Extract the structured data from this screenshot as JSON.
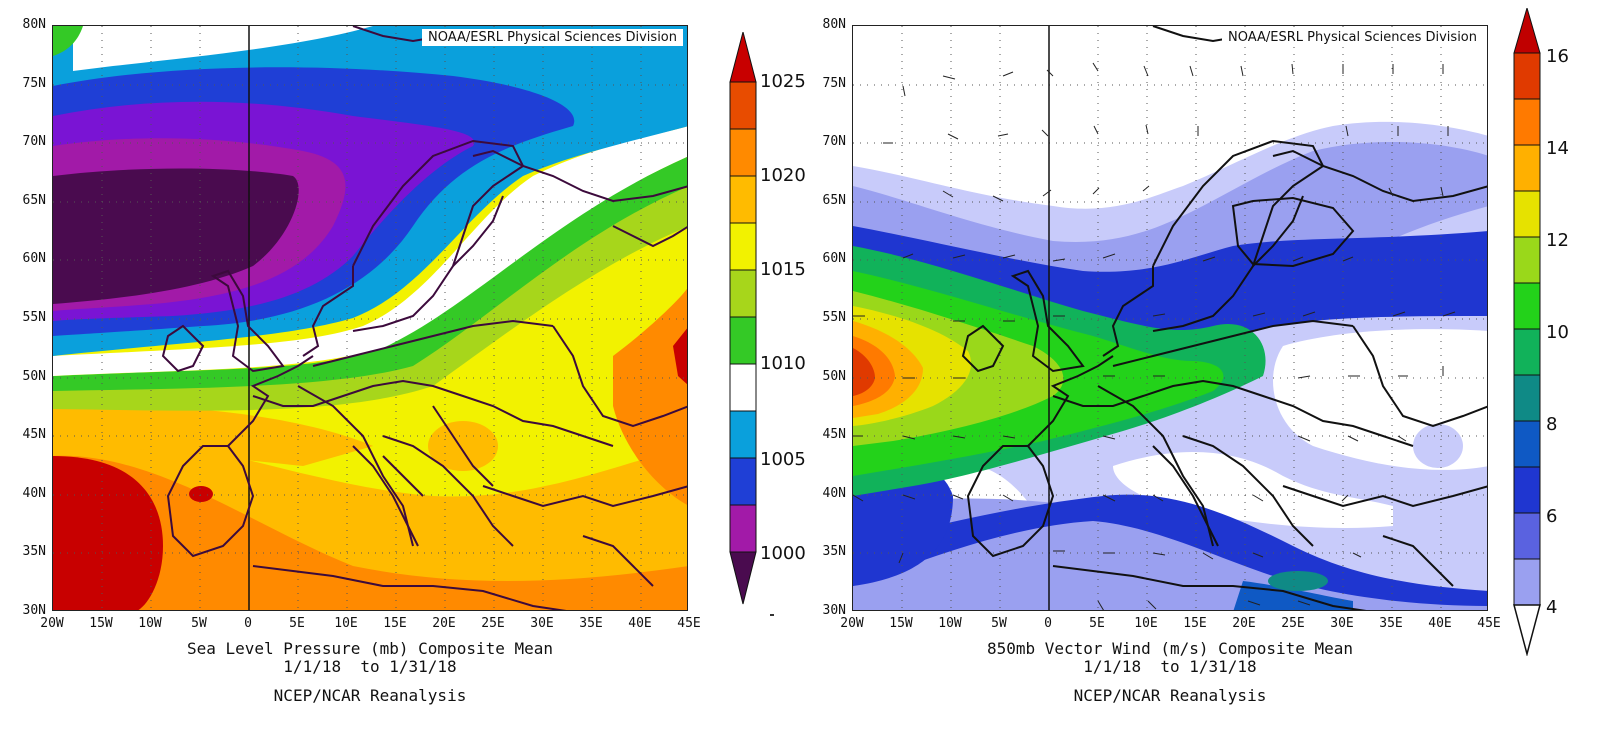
{
  "panels": [
    {
      "id": "slp",
      "credit": "NOAA/ESRL Physical Sciences Division",
      "caption_line1": "Sea Level Pressure (mb) Composite Mean",
      "caption_line2": "1/1/18  to 1/31/18",
      "caption_line3": "NCEP/NCAR Reanalysis",
      "colorbar_labels": [
        "1025",
        "1020",
        "1015",
        "1010",
        "1005",
        "1000"
      ],
      "colorbar_colors": [
        "#4a0b4f",
        "#a21aa8",
        "#7a14d4",
        "#1f3fd6",
        "#0aa0dc",
        "#ffffff",
        "#34c926",
        "#a7d61b",
        "#f2f200",
        "#ffbb00",
        "#ff8a00",
        "#e84c00",
        "#c80000"
      ]
    },
    {
      "id": "wind",
      "credit": "NOAA/ESRL Physical Sciences Division",
      "caption_line1": "850mb Vector Wind (m/s) Composite Mean",
      "caption_line2": "1/1/18  to 1/31/18",
      "caption_line3": "NCEP/NCAR Reanalysis",
      "colorbar_labels": [
        "16",
        "14",
        "12",
        "10",
        "8",
        "6",
        "4"
      ],
      "colorbar_colors": [
        "#c8cbfa",
        "#9aa0f0",
        "#5a62e0",
        "#1f36d0",
        "#0f59c4",
        "#0f8a86",
        "#11b25a",
        "#23d21a",
        "#9ad81a",
        "#e6e200",
        "#ffb000",
        "#ff7a00",
        "#e03a00",
        "#c00000"
      ]
    }
  ],
  "axes": {
    "y_ticks": [
      "80N",
      "75N",
      "70N",
      "65N",
      "60N",
      "55N",
      "50N",
      "45N",
      "40N",
      "35N",
      "30N"
    ],
    "x_ticks": [
      "20W",
      "15W",
      "10W",
      "5W",
      "0",
      "5E",
      "10E",
      "15E",
      "20E",
      "25E",
      "30E",
      "35E",
      "40E",
      "45E"
    ]
  },
  "colors": {
    "slp_1000": "#4a0b4f",
    "slp_1010": "#ffffff",
    "slp_1020": "#f2f200",
    "slp_1025": "#c80000",
    "wind_4": "#ffffff",
    "wind_8": "#0f59c4",
    "wind_12": "#9ad81a",
    "wind_16": "#c00000"
  }
}
